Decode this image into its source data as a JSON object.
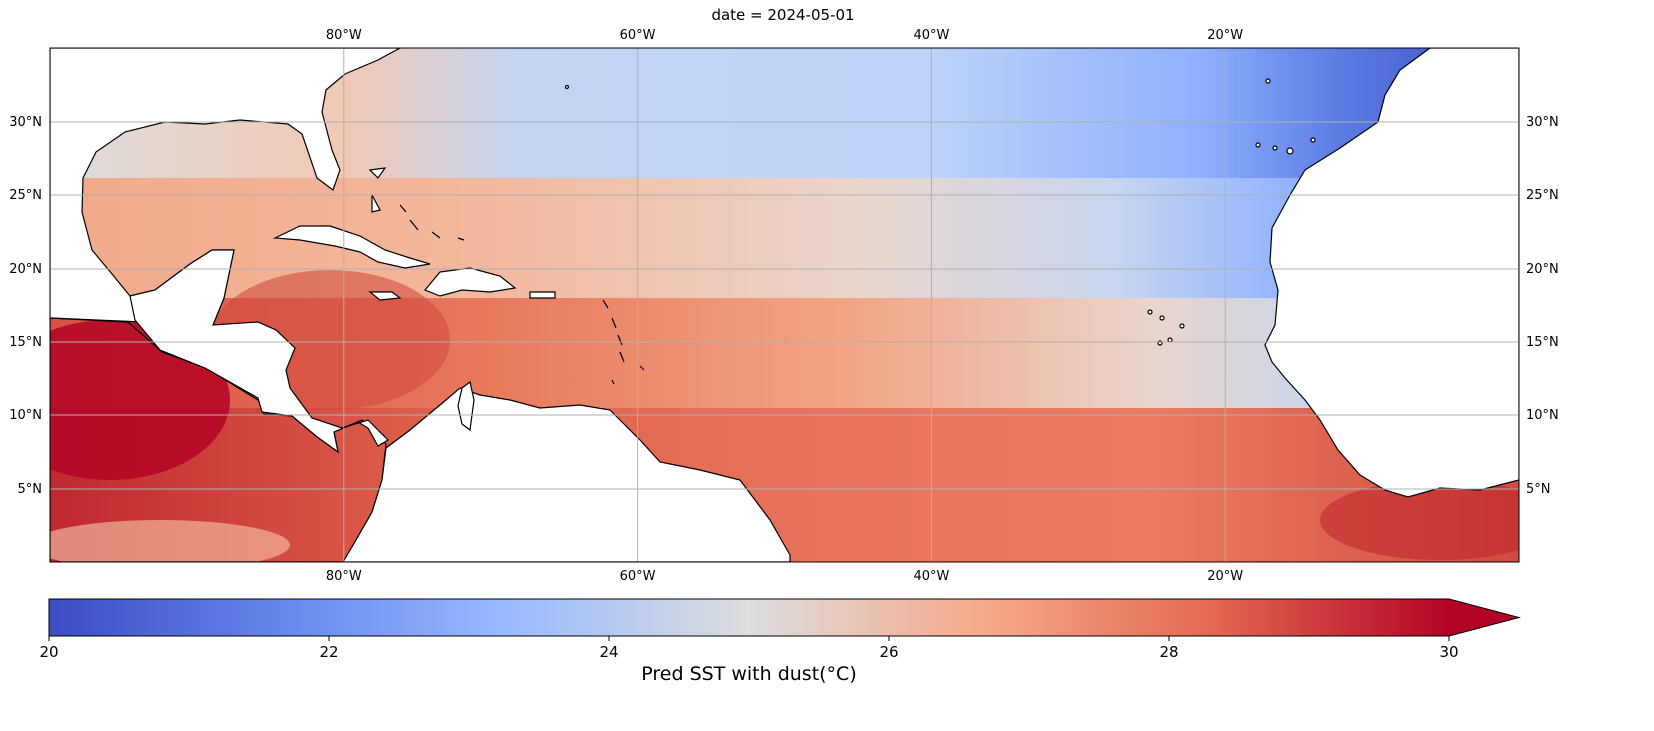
{
  "title": "date = 2024-05-01",
  "map": {
    "lon_range": [
      -100,
      0
    ],
    "lat_range": [
      0,
      35
    ],
    "x_ticks": [
      "80°W",
      "60°W",
      "40°W",
      "20°W"
    ],
    "x_tick_values": [
      -80,
      -60,
      -40,
      -20
    ],
    "y_ticks": [
      "30°N",
      "25°N",
      "20°N",
      "15°N",
      "10°N",
      "5°N"
    ],
    "y_tick_values": [
      30,
      25,
      20,
      15,
      10,
      5
    ],
    "gridlines": true
  },
  "colorbar": {
    "label": "Pred SST with dust(°C)",
    "ticks": [
      "20",
      "22",
      "24",
      "26",
      "28",
      "30"
    ],
    "tick_values": [
      20,
      22,
      24,
      26,
      28,
      30
    ],
    "range": [
      20,
      30
    ],
    "extend": "max",
    "colormap": "coolwarm",
    "colors": [
      "#3b4cc0",
      "#7396f5",
      "#b0cbfc",
      "#dcdddd",
      "#f6bfa6",
      "#ea7b60",
      "#b40426"
    ]
  }
}
